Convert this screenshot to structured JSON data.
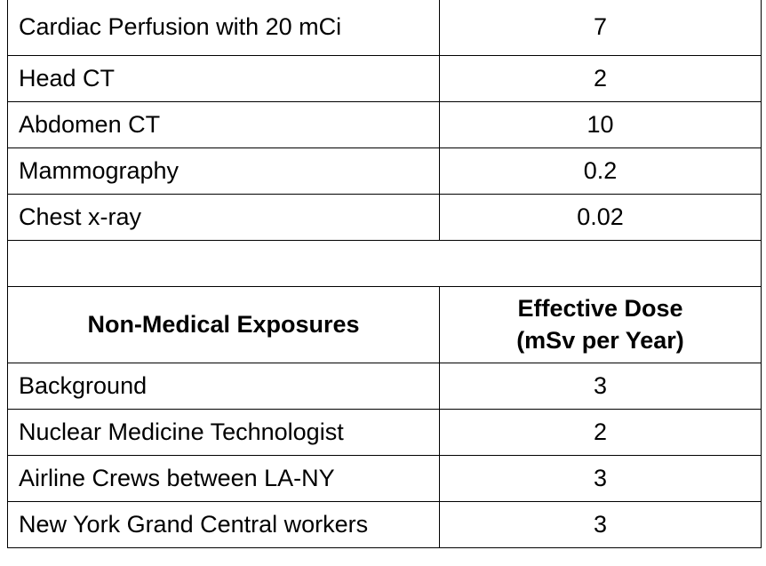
{
  "medical_rows": [
    {
      "label": "Cardiac Perfusion with 20 mCi",
      "value": "7"
    },
    {
      "label": "Head CT",
      "value": "2"
    },
    {
      "label": "Abdomen CT",
      "value": "10"
    },
    {
      "label": "Mammography",
      "value": "0.2"
    },
    {
      "label": "Chest x-ray",
      "value": "0.02"
    }
  ],
  "non_medical_header": {
    "label": "Non-Medical Exposures",
    "value_line1": "Effective Dose",
    "value_line2": "(mSv per Year)"
  },
  "non_medical_rows": [
    {
      "label": "Background",
      "value": "3"
    },
    {
      "label": "Nuclear Medicine Technologist",
      "value": "2"
    },
    {
      "label": "Airline Crews between LA-NY",
      "value": "3"
    },
    {
      "label": "New York Grand Central workers",
      "value": "3"
    }
  ]
}
